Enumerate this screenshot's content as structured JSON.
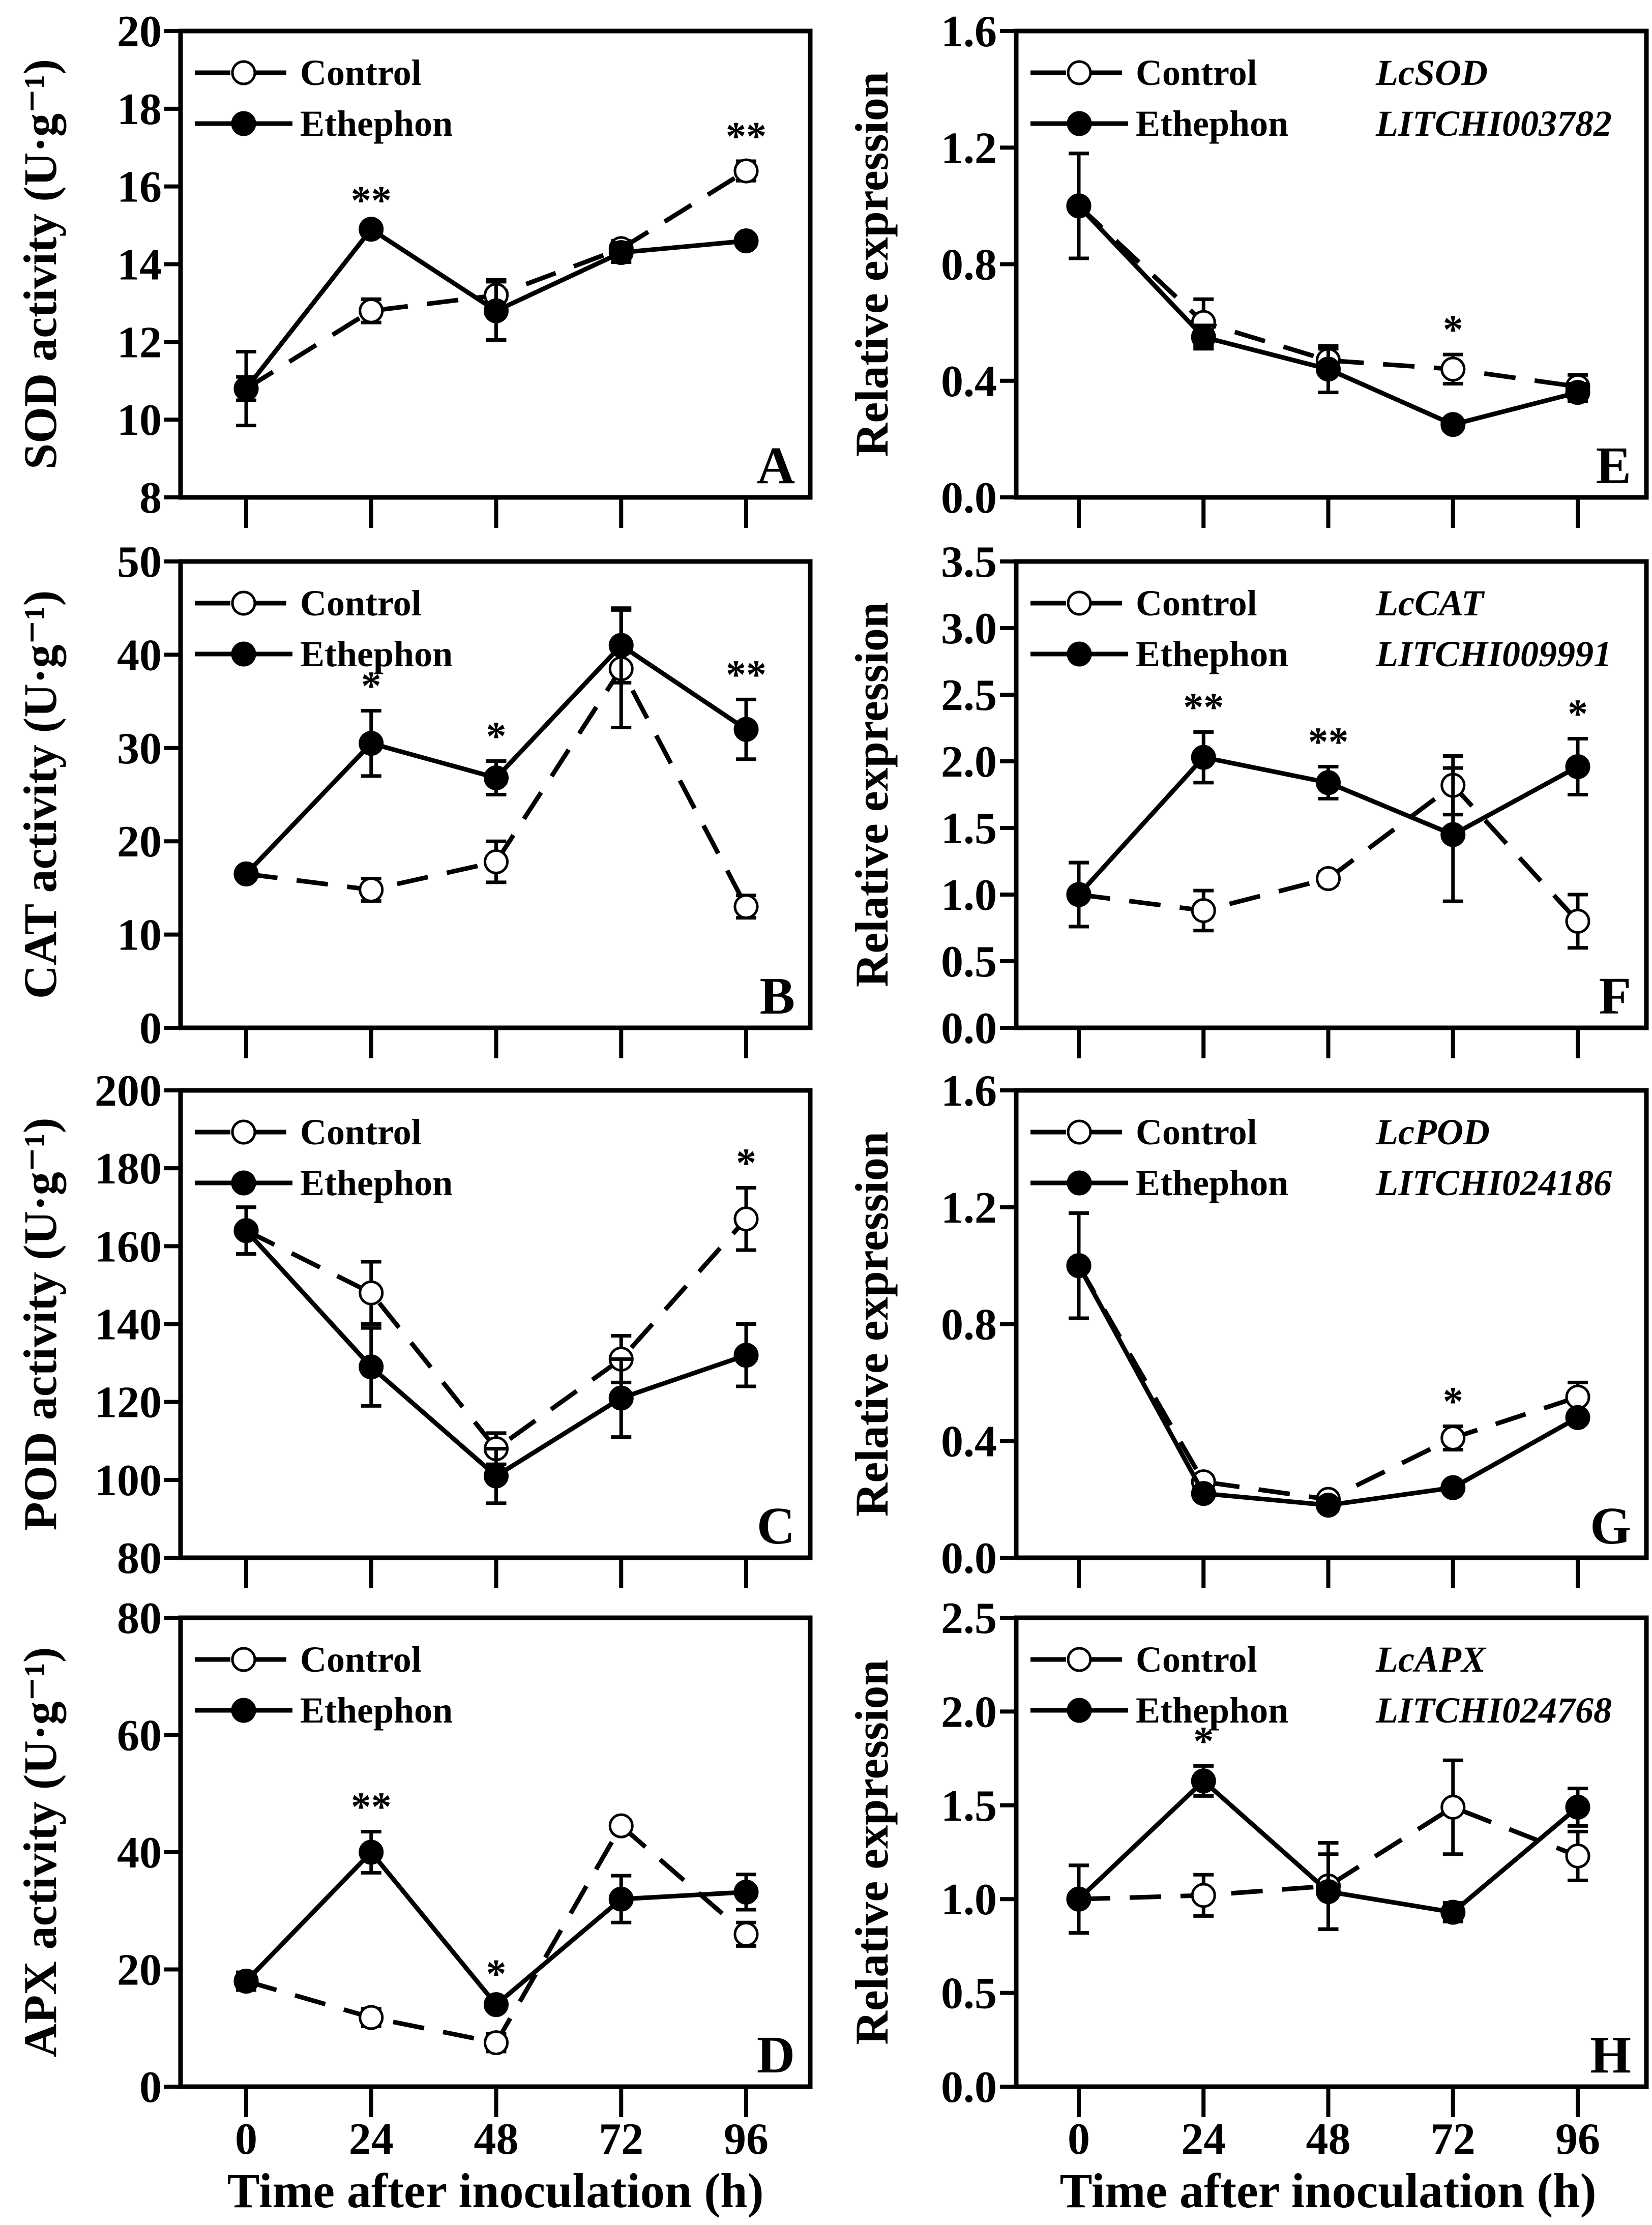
{
  "colors": {
    "line": "#000000",
    "open_marker_fill": "#ffffff",
    "background": "#ffffff"
  },
  "chart_data": [
    {
      "id": "A",
      "type": "line",
      "panel_label": "A",
      "ylabel": "SOD activity (U·g⁻¹)",
      "ylim": [
        8,
        20
      ],
      "yticks": [
        "8",
        "10",
        "12",
        "14",
        "16",
        "18",
        "20"
      ],
      "x": [
        0,
        24,
        48,
        72,
        96
      ],
      "gene": null,
      "gene_id": null,
      "series": [
        {
          "name": "Control",
          "values": [
            10.8,
            12.8,
            13.2,
            14.4,
            16.4
          ],
          "errors": [
            0.3,
            0.3,
            0.4,
            0.2,
            0.25
          ]
        },
        {
          "name": "Ethephon",
          "values": [
            10.8,
            14.9,
            12.8,
            14.3,
            14.6
          ],
          "errors": [
            0.95,
            0.1,
            0.75,
            0.25,
            0.15
          ]
        }
      ],
      "significance": [
        {
          "x": 24,
          "label": "**"
        },
        {
          "x": 96,
          "label": "**"
        }
      ]
    },
    {
      "id": "E",
      "type": "line",
      "panel_label": "E",
      "ylabel": "Relative expression",
      "ylim": [
        0,
        1.6
      ],
      "yticks": [
        "0.0",
        "0.4",
        "0.8",
        "1.2",
        "1.6"
      ],
      "x": [
        0,
        24,
        48,
        72,
        96
      ],
      "gene": "LcSOD",
      "gene_id": "LITCHI003782",
      "series": [
        {
          "name": "Control",
          "values": [
            1.0,
            0.6,
            0.47,
            0.44,
            0.38
          ],
          "errors": [
            0.18,
            0.08,
            0.04,
            0.05,
            0.04
          ]
        },
        {
          "name": "Ethephon",
          "values": [
            1.0,
            0.55,
            0.44,
            0.25,
            0.36
          ],
          "errors": [
            0.18,
            0.04,
            0.08,
            0.02,
            0.03
          ]
        }
      ],
      "significance": [
        {
          "x": 72,
          "label": "*"
        }
      ]
    },
    {
      "id": "B",
      "type": "line",
      "panel_label": "B",
      "ylabel": "CAT activity (U·g⁻¹)",
      "ylim": [
        0,
        50
      ],
      "yticks": [
        "0",
        "10",
        "20",
        "30",
        "40",
        "50"
      ],
      "x": [
        0,
        24,
        48,
        72,
        96
      ],
      "gene": null,
      "gene_id": null,
      "series": [
        {
          "name": "Control",
          "values": [
            16.5,
            14.8,
            17.8,
            38.5,
            13
          ],
          "errors": [
            0.5,
            1.2,
            2.2,
            6.3,
            1.2
          ]
        },
        {
          "name": "Ethephon",
          "values": [
            16.5,
            30.5,
            26.8,
            41,
            32
          ],
          "errors": [
            0.5,
            3.5,
            1.8,
            4,
            3.2
          ]
        }
      ],
      "significance": [
        {
          "x": 24,
          "label": "*"
        },
        {
          "x": 48,
          "label": "*"
        },
        {
          "x": 96,
          "label": "**"
        }
      ]
    },
    {
      "id": "F",
      "type": "line",
      "panel_label": "F",
      "ylabel": "Relative expression",
      "ylim": [
        0,
        3.5
      ],
      "yticks": [
        "0.0",
        "0.5",
        "1.0",
        "1.5",
        "2.0",
        "2.5",
        "3.0",
        "3.5"
      ],
      "x": [
        0,
        24,
        48,
        72,
        96
      ],
      "gene": "LcCAT",
      "gene_id": "LITCHI009991",
      "series": [
        {
          "name": "Control",
          "values": [
            1.0,
            0.88,
            1.12,
            1.82,
            0.8
          ],
          "errors": [
            0.24,
            0.15,
            0.05,
            0.22,
            0.2
          ]
        },
        {
          "name": "Ethephon",
          "values": [
            1.0,
            2.03,
            1.84,
            1.45,
            1.96
          ],
          "errors": [
            0.24,
            0.19,
            0.12,
            0.5,
            0.21
          ]
        }
      ],
      "significance": [
        {
          "x": 24,
          "label": "**"
        },
        {
          "x": 48,
          "label": "**"
        },
        {
          "x": 96,
          "label": "*"
        }
      ]
    },
    {
      "id": "C",
      "type": "line",
      "panel_label": "C",
      "ylabel": "POD activity (U·g⁻¹)",
      "ylim": [
        80,
        200
      ],
      "yticks": [
        "80",
        "100",
        "120",
        "140",
        "160",
        "180",
        "200"
      ],
      "x": [
        0,
        24,
        48,
        72,
        96
      ],
      "gene": null,
      "gene_id": null,
      "series": [
        {
          "name": "Control",
          "values": [
            164,
            148,
            108,
            131,
            167
          ],
          "errors": [
            6,
            8,
            4,
            6,
            8
          ]
        },
        {
          "name": "Ethephon",
          "values": [
            164,
            129,
            101,
            121,
            132
          ],
          "errors": [
            6,
            10,
            7,
            10,
            8
          ]
        }
      ],
      "significance": [
        {
          "x": 96,
          "label": "*"
        }
      ]
    },
    {
      "id": "G",
      "type": "line",
      "panel_label": "G",
      "ylabel": "Relative expression",
      "ylim": [
        0,
        1.6
      ],
      "yticks": [
        "0.0",
        "0.4",
        "0.8",
        "1.2",
        "1.6"
      ],
      "x": [
        0,
        24,
        48,
        72,
        96
      ],
      "gene": "LcPOD",
      "gene_id": "LITCHI024186",
      "series": [
        {
          "name": "Control",
          "values": [
            1.0,
            0.26,
            0.2,
            0.41,
            0.55
          ],
          "errors": [
            0.18,
            0.02,
            0.02,
            0.04,
            0.05
          ]
        },
        {
          "name": "Ethephon",
          "values": [
            1.0,
            0.22,
            0.18,
            0.24,
            0.48
          ],
          "errors": [
            0.18,
            0.02,
            0.02,
            0.02,
            0.02
          ]
        }
      ],
      "significance": [
        {
          "x": 72,
          "label": "*"
        }
      ]
    },
    {
      "id": "D",
      "type": "line",
      "panel_label": "D",
      "ylabel": "APX activity (U·g⁻¹)",
      "ylim": [
        0,
        80
      ],
      "yticks": [
        "0",
        "20",
        "40",
        "60",
        "80"
      ],
      "x": [
        0,
        24,
        48,
        72,
        96
      ],
      "gene": null,
      "gene_id": null,
      "series": [
        {
          "name": "Control",
          "values": [
            18,
            11.8,
            7.5,
            44.5,
            26
          ],
          "errors": [
            1.5,
            1.5,
            1.5,
            1,
            2
          ]
        },
        {
          "name": "Ethephon",
          "values": [
            18,
            40,
            14,
            32,
            33.2
          ],
          "errors": [
            1.5,
            3.5,
            1,
            4,
            3
          ]
        }
      ],
      "significance": [
        {
          "x": 24,
          "label": "**"
        },
        {
          "x": 48,
          "label": "*"
        }
      ]
    },
    {
      "id": "H",
      "type": "line",
      "panel_label": "H",
      "ylabel": "Relative expression",
      "ylim": [
        0,
        2.5
      ],
      "yticks": [
        "0.0",
        "0.5",
        "1.0",
        "1.5",
        "2.0",
        "2.5"
      ],
      "x": [
        0,
        24,
        48,
        72,
        96
      ],
      "gene": "LcAPX",
      "gene_id": "LITCHI024768",
      "series": [
        {
          "name": "Control",
          "values": [
            1.0,
            1.02,
            1.07,
            1.49,
            1.23
          ],
          "errors": [
            0.18,
            0.11,
            0.23,
            0.25,
            0.13
          ]
        },
        {
          "name": "Ethephon",
          "values": [
            1.0,
            1.63,
            1.04,
            0.93,
            1.49
          ],
          "errors": [
            0.18,
            0.08,
            0.2,
            0.05,
            0.1
          ]
        }
      ],
      "significance": [
        {
          "x": 24,
          "label": "*"
        }
      ]
    }
  ],
  "shared": {
    "xlabel": "Time after inoculation (h)",
    "xticks": [
      "0",
      "24",
      "48",
      "72",
      "96"
    ],
    "legend": [
      "Control",
      "Ethephon"
    ]
  }
}
